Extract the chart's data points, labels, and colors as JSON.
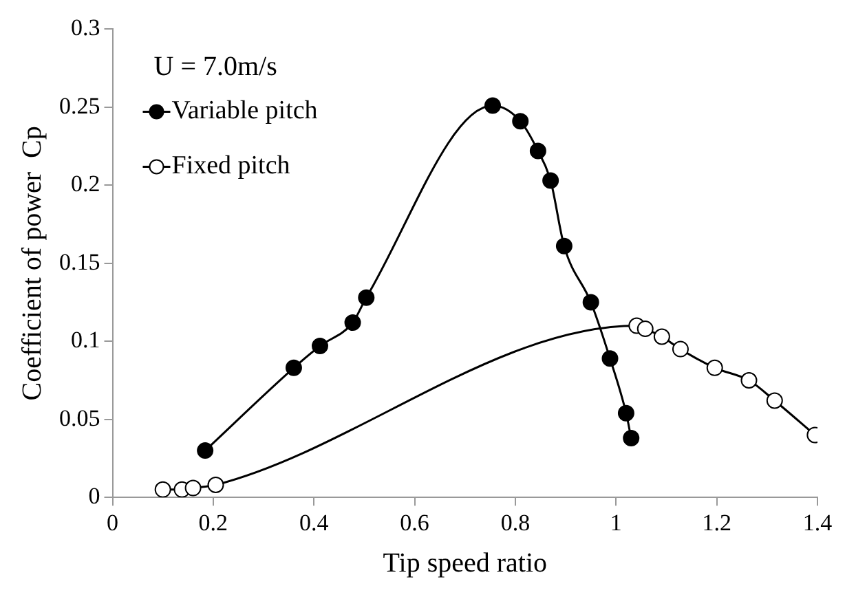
{
  "chart_data": {
    "type": "line",
    "xlabel": "Tip speed ratio",
    "ylabel": "Coefficient of power  Cp",
    "annotations": [
      "U = 7.0m/s"
    ],
    "series": [
      {
        "name": "Variable pitch",
        "color": "#000000",
        "x": [
          0.184,
          0.36,
          0.412,
          0.477,
          0.504,
          0.755,
          0.81,
          0.845,
          0.87,
          0.897,
          0.95,
          0.988,
          1.02,
          1.03
        ],
        "values": [
          0.03,
          0.083,
          0.097,
          0.112,
          0.128,
          0.251,
          0.241,
          0.222,
          0.203,
          0.161,
          0.125,
          0.089,
          0.054,
          0.038
        ]
      },
      {
        "name": "Fixed pitch",
        "color": "#000000",
        "x": [
          0.1,
          0.138,
          0.16,
          0.205,
          1.041,
          1.058,
          1.091,
          1.128,
          1.196,
          1.264,
          1.315,
          1.395
        ],
        "values": [
          0.005,
          0.005,
          0.006,
          0.008,
          0.11,
          0.108,
          0.103,
          0.095,
          0.083,
          0.075,
          0.062,
          0.04
        ]
      }
    ],
    "xlim": [
      0,
      1.4
    ],
    "xticks": [
      0,
      0.2,
      0.4,
      0.6,
      0.8,
      1,
      1.2,
      1.4
    ],
    "ylim": [
      0,
      0.3
    ],
    "yticks": [
      0,
      0.05,
      0.1,
      0.15,
      0.2,
      0.25,
      0.3
    ],
    "grid": false,
    "legend": "top left",
    "marker": "circle",
    "line_style": "solid"
  }
}
